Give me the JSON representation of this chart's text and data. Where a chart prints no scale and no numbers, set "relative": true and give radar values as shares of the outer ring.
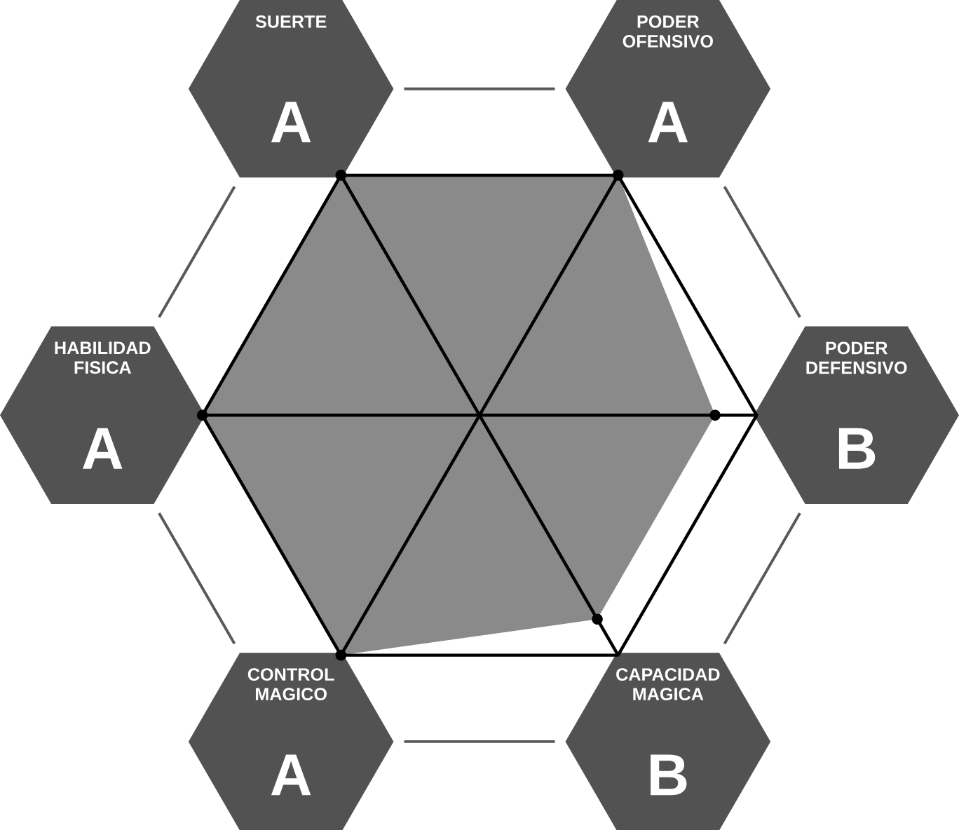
{
  "chart_data": {
    "type": "radar",
    "relative": true,
    "categories": [
      "PODER OFENSIVO",
      "PODER DEFENSIVO",
      "CAPACIDAD MAGICA",
      "CONTROL MAGICO",
      "HABILIDAD FISICA",
      "SUERTE"
    ],
    "series": [
      {
        "color": "#8a8a8a",
        "values": [
          1,
          0.85,
          0.85,
          1,
          1,
          1
        ]
      }
    ],
    "annotations": [
      "A",
      "B",
      "B",
      "A",
      "A",
      "A"
    ],
    "marker": "circle"
  }
}
